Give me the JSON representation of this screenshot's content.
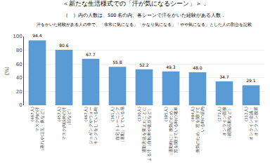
{
  "chart_data": {
    "type": "bar",
    "title": "＜新たな生活様式での「汗が気になるシーン」＞．",
    "subtitle": [
      "（　）内の人数は、500 名の内、各シーンで汗をかいた経験がある人数．",
      "汗をかいた経験がある人の中で、「非常に気になる」「かなり気になる」「やや気になる」とした人の割合を記載"
    ],
    "y_label": "(%)",
    "categories": [
      "(467人)\nマスク内の汗\n（蒸れや口元・鼻など）",
      "(457人)\nマスク内以外の汗\n（顔など）",
      "(467人)\nジョギングやウォー\nキングをしている時",
      "(361人)\n自宅トレーニング\n（運動）している場",
      "(330人)\n通勤方法を変えたことに\nよる汗（自転車や徒歩など）",
      "(385人)\n（通勤時に）換気のため、\n窓を開けている時の電車",
      "(404人)\n換気のため、窓を開けて\nいる時の店内",
      "(273人)\nオンライン面接\n（就職活動など）",
      "(312人)\nオンライン会議・\nオンライン授業"
    ],
    "values": [
      94.4,
      80.6,
      67.7,
      55.8,
      52.2,
      49.3,
      48.0,
      34.7,
      29.1
    ],
    "value_labels": [
      "94.4",
      "80.6",
      "67.7",
      "55.8",
      "52.2",
      "49.3",
      "48.0",
      "34.7",
      "29.1"
    ],
    "data_labels": true,
    "color": "#5B9BD5",
    "ylim": [
      0,
      100
    ],
    "yticks": [
      0,
      20,
      40,
      60,
      80,
      100
    ],
    "grid": true
  }
}
